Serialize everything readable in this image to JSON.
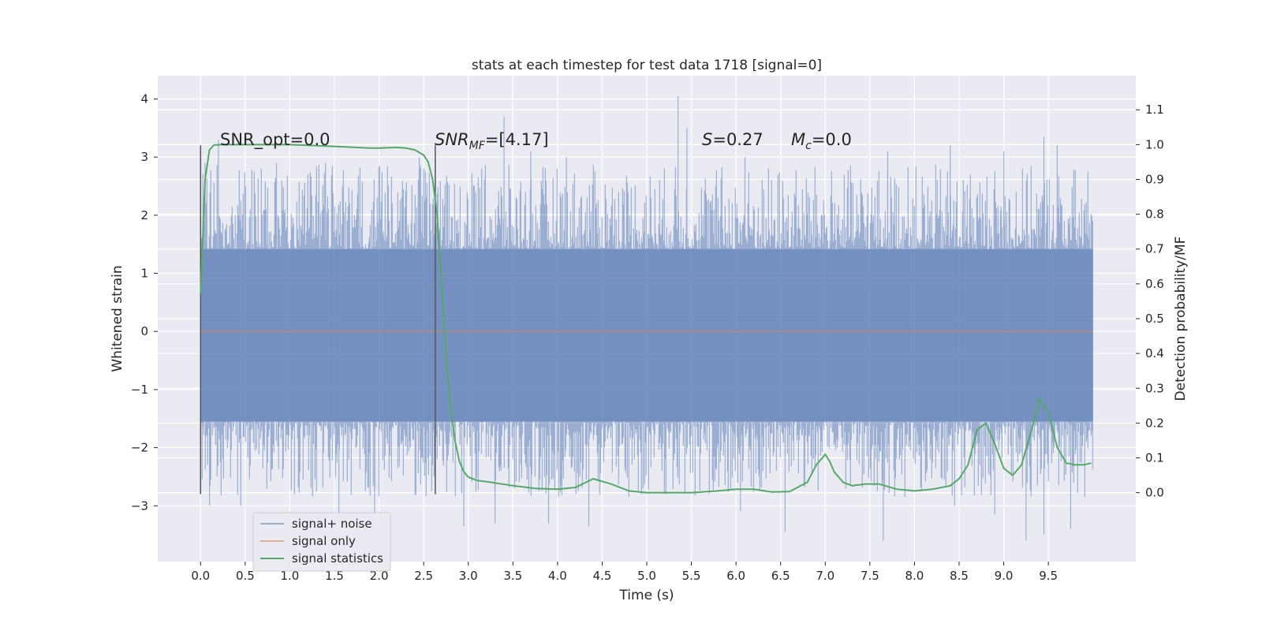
{
  "chart_data": {
    "type": "line",
    "title": "stats at each timestep for test data 1718 [signal=0]",
    "xlabel": "Time (s)",
    "ylabel": "Whitened strain",
    "y2label": "Detection probability/MF",
    "xlim": [
      -0.48,
      10.48
    ],
    "ylim": [
      -3.96,
      4.4
    ],
    "y2lim": [
      -0.198,
      1.198
    ],
    "xticks": [
      "0.0",
      "0.5",
      "1.0",
      "1.5",
      "2.0",
      "2.5",
      "3.0",
      "3.5",
      "4.0",
      "4.5",
      "5.0",
      "5.5",
      "6.0",
      "6.5",
      "7.0",
      "7.5",
      "8.0",
      "8.5",
      "9.0",
      "9.5"
    ],
    "yticks": [
      "−3",
      "−2",
      "−1",
      "0",
      "1",
      "2",
      "3",
      "4"
    ],
    "y2ticks": [
      "0.0",
      "0.1",
      "0.2",
      "0.3",
      "0.4",
      "0.5",
      "0.6",
      "0.7",
      "0.8",
      "0.9",
      "1.0",
      "1.1"
    ],
    "grid": true,
    "legend_position": "lower-left",
    "series": [
      {
        "name": "signal+ noise",
        "color": "#4c72b0",
        "axis": "left",
        "x_range": [
          0.0,
          10.0
        ],
        "band": [
          -1.55,
          1.42
        ],
        "peaks_up": [
          [
            0.05,
            2.9
          ],
          [
            0.2,
            3.3
          ],
          [
            0.85,
            2.9
          ],
          [
            1.4,
            2.9
          ],
          [
            2.45,
            3.0
          ],
          [
            3.15,
            2.8
          ],
          [
            3.4,
            3.7
          ],
          [
            3.7,
            3.1
          ],
          [
            4.1,
            3.0
          ],
          [
            5.35,
            4.05
          ],
          [
            5.45,
            3.5
          ],
          [
            6.1,
            3.0
          ],
          [
            7.7,
            3.1
          ],
          [
            8.4,
            3.2
          ],
          [
            9.0,
            3.1
          ],
          [
            9.45,
            3.35
          ],
          [
            9.6,
            3.2
          ]
        ],
        "peaks_down": [
          [
            0.1,
            -3.0
          ],
          [
            0.45,
            -3.0
          ],
          [
            1.55,
            -3.2
          ],
          [
            1.95,
            -3.4
          ],
          [
            2.95,
            -3.35
          ],
          [
            3.3,
            -3.3
          ],
          [
            3.9,
            -3.3
          ],
          [
            4.35,
            -3.35
          ],
          [
            6.05,
            -3.1
          ],
          [
            6.55,
            -3.45
          ],
          [
            7.65,
            -3.6
          ],
          [
            8.45,
            -3.0
          ],
          [
            8.9,
            -3.15
          ],
          [
            9.25,
            -3.6
          ],
          [
            9.45,
            -3.5
          ],
          [
            9.75,
            -3.4
          ]
        ]
      },
      {
        "name": "signal only",
        "color": "#dd8452",
        "axis": "left",
        "x": [
          0.0,
          10.0
        ],
        "y": [
          0.0,
          0.0
        ]
      },
      {
        "name": "signal statistics",
        "color": "#55a868",
        "axis": "right",
        "x": [
          0.0,
          0.05,
          0.1,
          0.15,
          0.25,
          0.4,
          0.6,
          1.0,
          1.5,
          1.9,
          2.0,
          2.2,
          2.3,
          2.4,
          2.5,
          2.55,
          2.6,
          2.65,
          2.7,
          2.75,
          2.8,
          2.85,
          2.9,
          2.95,
          3.0,
          3.1,
          3.25,
          3.5,
          3.75,
          4.0,
          4.2,
          4.4,
          4.6,
          4.8,
          5.0,
          5.5,
          5.8,
          6.0,
          6.2,
          6.4,
          6.6,
          6.8,
          6.9,
          7.0,
          7.05,
          7.1,
          7.2,
          7.3,
          7.45,
          7.6,
          7.8,
          8.0,
          8.2,
          8.4,
          8.5,
          8.6,
          8.7,
          8.8,
          8.9,
          9.0,
          9.1,
          9.2,
          9.3,
          9.4,
          9.5,
          9.6,
          9.7,
          9.8,
          9.9,
          9.98
        ],
        "y": [
          0.57,
          0.9,
          0.985,
          0.999,
          1.0,
          1.0,
          1.0,
          1.0,
          0.995,
          0.99,
          0.99,
          0.992,
          0.99,
          0.985,
          0.97,
          0.95,
          0.9,
          0.8,
          0.6,
          0.4,
          0.25,
          0.15,
          0.09,
          0.06,
          0.045,
          0.035,
          0.03,
          0.02,
          0.012,
          0.01,
          0.015,
          0.04,
          0.025,
          0.005,
          0.0,
          0.0,
          0.005,
          0.01,
          0.01,
          0.002,
          0.003,
          0.03,
          0.08,
          0.11,
          0.09,
          0.06,
          0.03,
          0.02,
          0.025,
          0.025,
          0.01,
          0.005,
          0.01,
          0.02,
          0.04,
          0.08,
          0.18,
          0.2,
          0.14,
          0.07,
          0.05,
          0.08,
          0.17,
          0.27,
          0.23,
          0.13,
          0.085,
          0.08,
          0.08,
          0.085
        ]
      }
    ],
    "vlines": [
      {
        "x": 0.0,
        "ymin": -2.8,
        "ymax": 3.2
      },
      {
        "x": 2.63,
        "ymin": -2.8,
        "ymax": 3.2
      }
    ],
    "annotations": {
      "snr_opt": "SNR_opt=0.0",
      "snr_mf": "=[4.17]",
      "s_stat": "=0.27",
      "mc": "=0.0"
    }
  }
}
